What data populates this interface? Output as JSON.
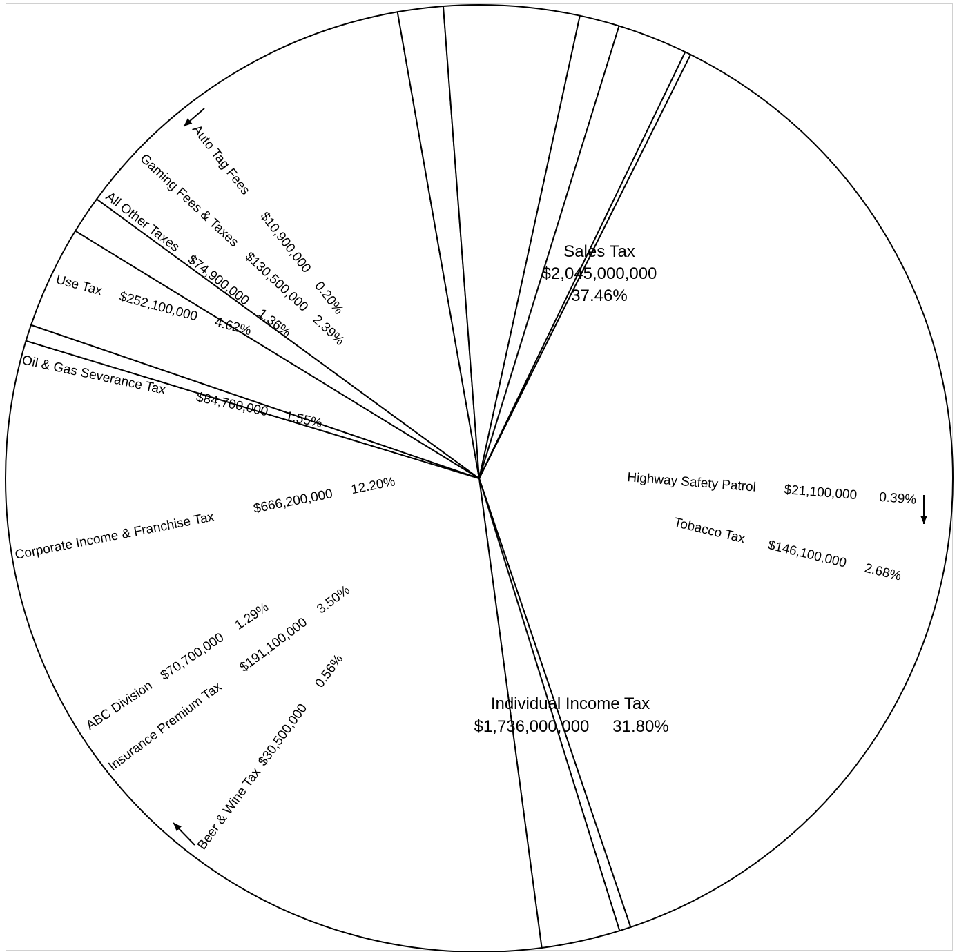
{
  "chart_data": {
    "type": "pie",
    "title": "",
    "slices": [
      {
        "name": "Sales Tax",
        "amount": "$2,045,000,000",
        "percent": "37.46%",
        "value": 37.46
      },
      {
        "name": "Highway Safety Patrol",
        "amount": "$21,100,000",
        "percent": "0.39%",
        "value": 0.39
      },
      {
        "name": "Tobacco Tax",
        "amount": "$146,100,000",
        "percent": "2.68%",
        "value": 2.68
      },
      {
        "name": "Individual Income Tax",
        "amount": "$1,736,000,000",
        "percent": "31.80%",
        "value": 31.8
      },
      {
        "name": "Beer & Wine Tax",
        "amount": "$30,500,000",
        "percent": "0.56%",
        "value": 0.56
      },
      {
        "name": "Insurance Premium Tax",
        "amount": "$191,100,000",
        "percent": "3.50%",
        "value": 3.5
      },
      {
        "name": "ABC Division",
        "amount": "$70,700,000",
        "percent": "1.29%",
        "value": 1.29
      },
      {
        "name": "Corporate Income & Franchise Tax",
        "amount": "$666,200,000",
        "percent": "12.20%",
        "value": 12.2
      },
      {
        "name": "Oil & Gas Severance Tax",
        "amount": "$84,700,000",
        "percent": "1.55%",
        "value": 1.55
      },
      {
        "name": "Use Tax",
        "amount": "$252,100,000",
        "percent": "4.62%",
        "value": 4.62
      },
      {
        "name": "All Other Taxes",
        "amount": "$74,900,000",
        "percent": "1.36%",
        "value": 1.36
      },
      {
        "name": "Gaming Fees & Taxes",
        "amount": "$130,500,000",
        "percent": "2.39%",
        "value": 2.39
      },
      {
        "name": "Auto Tag Fees",
        "amount": "$10,900,000",
        "percent": "0.20%",
        "value": 0.2
      }
    ],
    "colors": {
      "fill": "#ffffff",
      "stroke": "#000000"
    }
  }
}
